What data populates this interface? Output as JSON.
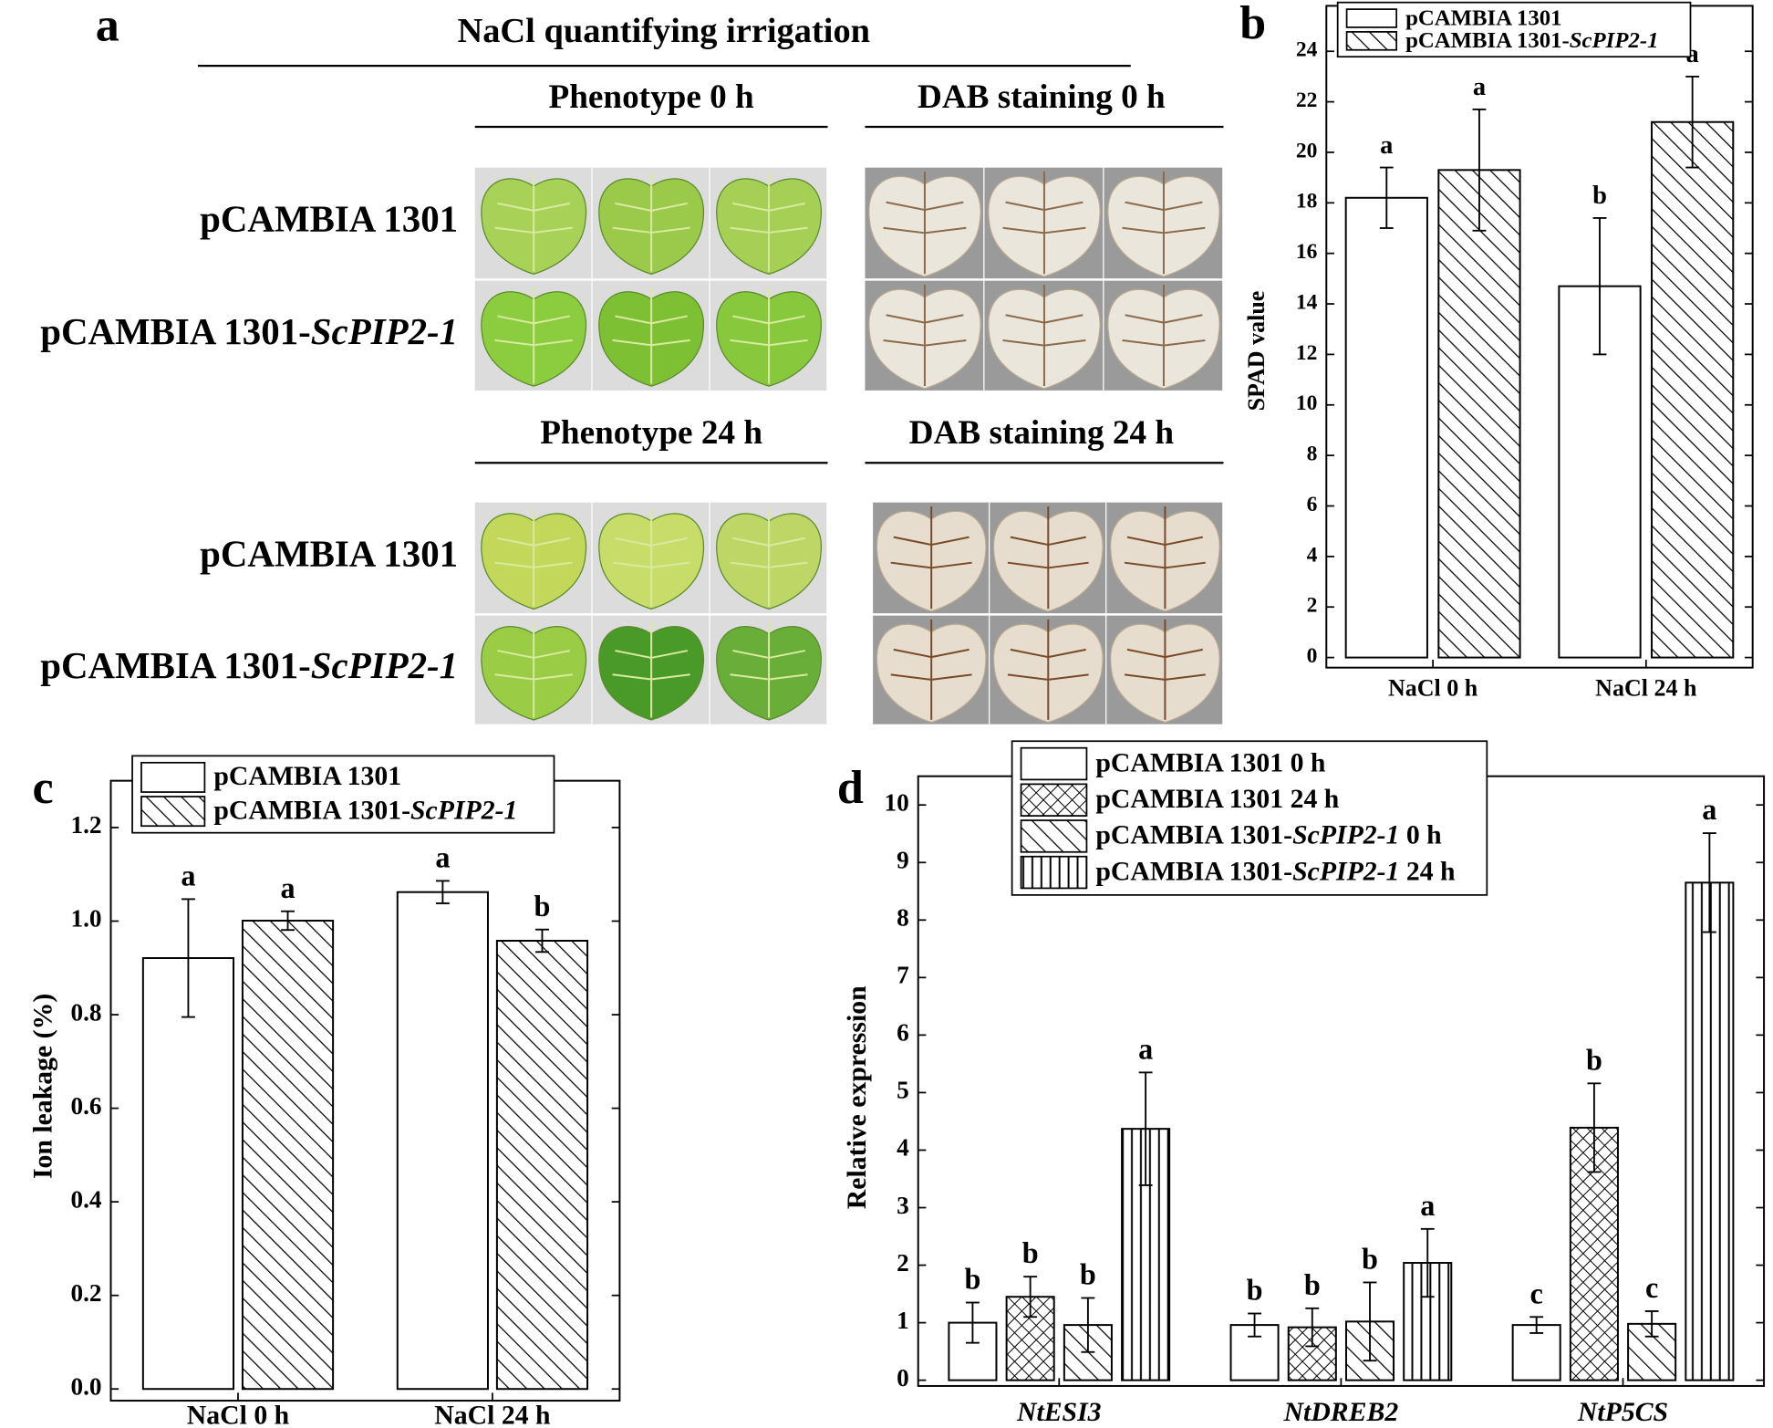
{
  "panel_a": {
    "label": "a",
    "title": "NaCl quantifying irrigation",
    "sections": [
      {
        "phenotype": "Phenotype 0 h",
        "staining": "DAB staining 0 h",
        "rows": [
          "pCAMBIA 1301",
          "pCAMBIA 1301-ScPIP2-1"
        ]
      },
      {
        "phenotype": "Phenotype 24 h",
        "staining": "DAB staining 24 h",
        "rows": [
          "pCAMBIA 1301",
          "pCAMBIA 1301-ScPIP2-1"
        ]
      }
    ]
  },
  "chart_data": [
    {
      "type": "bar",
      "panel_label": "b",
      "ylabel": "SPAD value",
      "categories": [
        "NaCl 0 h",
        "NaCl 24 h"
      ],
      "series": [
        {
          "name": "pCAMBIA 1301",
          "color": "#000000",
          "pattern": "none",
          "values": [
            18.2,
            14.7
          ],
          "errors": [
            1.2,
            2.7
          ],
          "significance": [
            "a",
            "b"
          ]
        },
        {
          "name": "pCAMBIA 1301-ScPIP2-1",
          "color": "#000000",
          "pattern": "diagonal",
          "values": [
            19.3,
            21.2
          ],
          "errors": [
            2.4,
            1.8
          ],
          "significance": [
            "a",
            "a"
          ]
        }
      ],
      "ylim": [
        -0.4,
        25.8
      ],
      "yticks": [
        0,
        2,
        4,
        6,
        8,
        10,
        12,
        14,
        16,
        18,
        20,
        22,
        24
      ],
      "legend": "upper left"
    },
    {
      "type": "bar",
      "panel_label": "c",
      "ylabel": "Ion leakage (%)",
      "categories": [
        "NaCl 0 h",
        "NaCl 24 h"
      ],
      "series": [
        {
          "name": "pCAMBIA 1301",
          "color": "#000000",
          "pattern": "none",
          "values": [
            0.921,
            1.062
          ],
          "errors": [
            0.126,
            0.024
          ],
          "significance": [
            "a",
            "a"
          ]
        },
        {
          "name": "pCAMBIA 1301-ScPIP2-1",
          "color": "#000000",
          "pattern": "diagonal",
          "values": [
            1.001,
            0.958
          ],
          "errors": [
            0.02,
            0.024
          ],
          "significance": [
            "a",
            "b"
          ]
        }
      ],
      "ylim": [
        -0.025,
        1.3
      ],
      "yticks": [
        {
          "value": 0,
          "label": "0.0"
        },
        0.2,
        0.4,
        0.6,
        0.8,
        {
          "value": 1,
          "label": "1.0"
        },
        1.2
      ],
      "legend": "upper left"
    },
    {
      "type": "bar",
      "panel_label": "d",
      "ylabel": "Relative expression",
      "categories": [
        "NtESI3",
        "NtDREB2",
        "NtP5CS"
      ],
      "series": [
        {
          "name": "pCAMBIA 1301 0 h",
          "color": "#000000",
          "pattern": "none",
          "values": [
            1.0,
            0.96,
            0.96
          ],
          "errors": [
            0.35,
            0.2,
            0.14
          ],
          "significance": [
            "b",
            "b",
            "c"
          ]
        },
        {
          "name": "pCAMBIA 1301 24 h",
          "color": "#000000",
          "pattern": "cross",
          "values": [
            1.45,
            0.92,
            4.39
          ],
          "errors": [
            0.35,
            0.33,
            0.77
          ],
          "significance": [
            "b",
            "b",
            "b"
          ]
        },
        {
          "name": "pCAMBIA 1301-ScPIP2-1 0 h",
          "color": "#000000",
          "pattern": "diagonal",
          "values": [
            0.96,
            1.02,
            0.98
          ],
          "errors": [
            0.47,
            0.68,
            0.22
          ],
          "significance": [
            "b",
            "b",
            "c"
          ]
        },
        {
          "name": "pCAMBIA 1301-ScPIP2-1 24 h",
          "color": "#000000",
          "pattern": "vertical",
          "values": [
            4.37,
            2.04,
            8.65
          ],
          "errors": [
            0.98,
            0.59,
            0.86
          ],
          "significance": [
            "a",
            "a",
            "a"
          ]
        }
      ],
      "ylim": [
        -0.1,
        10.5
      ],
      "yticks": [
        0,
        1,
        2,
        3,
        4,
        5,
        6,
        7,
        8,
        9,
        10
      ],
      "legend": "upper center"
    }
  ]
}
